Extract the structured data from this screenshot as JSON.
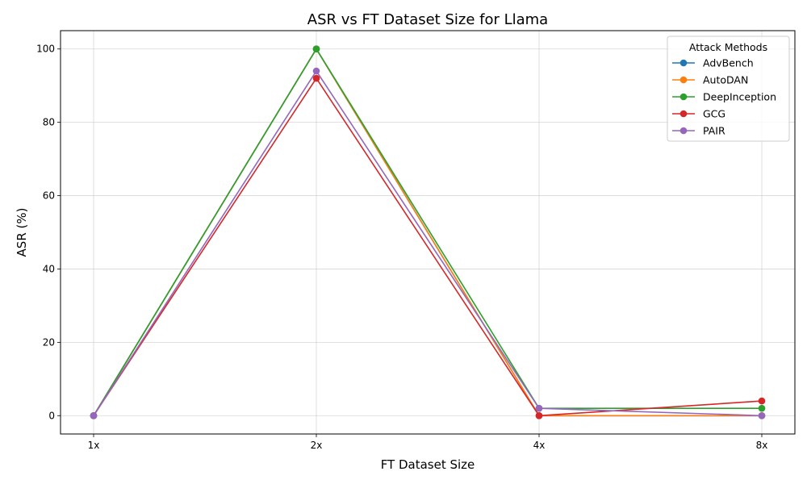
{
  "chart_data": {
    "type": "line",
    "title": "ASR vs FT Dataset Size for Llama",
    "xlabel": "FT Dataset Size",
    "ylabel": "ASR (%)",
    "categories": [
      "1x",
      "2x",
      "4x",
      "8x"
    ],
    "ylim": [
      -5,
      105
    ],
    "yticks": [
      0,
      20,
      40,
      60,
      80,
      100
    ],
    "grid": true,
    "legend": {
      "title": "Attack Methods",
      "placement": "top-right"
    },
    "series": [
      {
        "name": "AdvBench",
        "color": "#1f77b4",
        "values": [
          0,
          100,
          0,
          0
        ]
      },
      {
        "name": "AutoDAN",
        "color": "#ff7f0e",
        "values": [
          0,
          100,
          0,
          0
        ]
      },
      {
        "name": "DeepInception",
        "color": "#2ca02c",
        "values": [
          0,
          100,
          2,
          2
        ]
      },
      {
        "name": "GCG",
        "color": "#d62728",
        "values": [
          0,
          92,
          0,
          4
        ]
      },
      {
        "name": "PAIR",
        "color": "#9467bd",
        "values": [
          0,
          94,
          2,
          0
        ]
      }
    ]
  }
}
